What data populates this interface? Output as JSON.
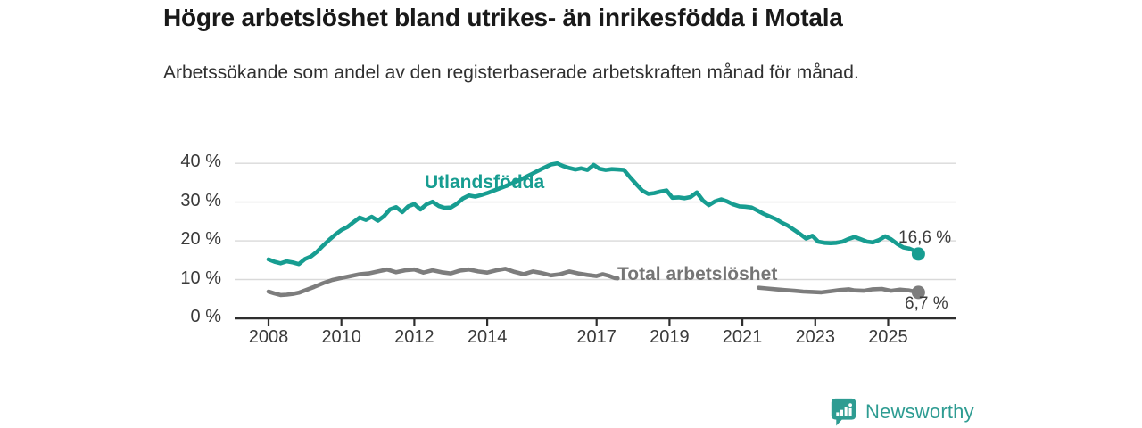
{
  "header": {
    "title": "Högre arbetslöshet bland utrikes- än inrikesfödda i Motala",
    "subtitle": "Arbetssökande som andel av den registerbaserade arbetskraften månad för månad."
  },
  "chart_data": {
    "type": "line",
    "title": "Högre arbetslöshet bland utrikes- än inrikesfödda i Motala",
    "subtitle": "Arbetssökande som andel av den registerbaserade arbetskraften månad för månad.",
    "x_unit": "year, monthly observations",
    "y_unit": "percent of registered labour force",
    "xlim": [
      2007.1,
      2026.9
    ],
    "ylim": [
      0,
      40
    ],
    "grid": "horizontal",
    "legend_position": "inline-labels",
    "grid_color": "#d9d9d9",
    "axis_color": "#2e2e2e",
    "yticks": [
      {
        "value": 0,
        "label": "0 %"
      },
      {
        "value": 10,
        "label": "10 %"
      },
      {
        "value": 20,
        "label": "20 %"
      },
      {
        "value": 30,
        "label": "30 %"
      },
      {
        "value": 40,
        "label": "40 %"
      }
    ],
    "xticks": [
      {
        "value": 2008,
        "label": "2008"
      },
      {
        "value": 2010,
        "label": "2010"
      },
      {
        "value": 2012,
        "label": "2012"
      },
      {
        "value": 2014,
        "label": "2014"
      },
      {
        "value": 2017,
        "label": "2017"
      },
      {
        "value": 2019,
        "label": "2019"
      },
      {
        "value": 2021,
        "label": "2021"
      },
      {
        "value": 2023,
        "label": "2023"
      },
      {
        "value": 2025,
        "label": "2025"
      }
    ],
    "series": [
      {
        "name": "Utlandsfödda",
        "color": "#179d91",
        "end_label": "16,6 %",
        "end_value": 16.6,
        "points": [
          [
            2008.0,
            15.2
          ],
          [
            2008.17,
            14.6
          ],
          [
            2008.33,
            14.2
          ],
          [
            2008.5,
            14.7
          ],
          [
            2008.67,
            14.4
          ],
          [
            2008.83,
            14.0
          ],
          [
            2009.0,
            15.3
          ],
          [
            2009.17,
            16.0
          ],
          [
            2009.33,
            17.2
          ],
          [
            2009.5,
            18.8
          ],
          [
            2009.67,
            20.3
          ],
          [
            2009.83,
            21.6
          ],
          [
            2010.0,
            22.8
          ],
          [
            2010.17,
            23.6
          ],
          [
            2010.33,
            24.8
          ],
          [
            2010.5,
            26.0
          ],
          [
            2010.67,
            25.4
          ],
          [
            2010.83,
            26.2
          ],
          [
            2011.0,
            25.2
          ],
          [
            2011.17,
            26.4
          ],
          [
            2011.33,
            28.1
          ],
          [
            2011.5,
            28.7
          ],
          [
            2011.67,
            27.4
          ],
          [
            2011.83,
            28.9
          ],
          [
            2012.0,
            29.5
          ],
          [
            2012.17,
            28.1
          ],
          [
            2012.33,
            29.4
          ],
          [
            2012.5,
            30.1
          ],
          [
            2012.67,
            29.0
          ],
          [
            2012.83,
            28.5
          ],
          [
            2013.0,
            28.6
          ],
          [
            2013.17,
            29.6
          ],
          [
            2013.33,
            30.9
          ],
          [
            2013.5,
            31.7
          ],
          [
            2013.67,
            31.4
          ],
          [
            2013.83,
            31.8
          ],
          [
            2014.0,
            32.3
          ],
          [
            2014.25,
            33.2
          ],
          [
            2014.5,
            34.1
          ],
          [
            2014.75,
            35.1
          ],
          [
            2015.0,
            36.2
          ],
          [
            2015.25,
            37.4
          ],
          [
            2015.5,
            38.6
          ],
          [
            2015.75,
            39.7
          ],
          [
            2015.92,
            40.0
          ],
          [
            2016.08,
            39.3
          ],
          [
            2016.25,
            38.8
          ],
          [
            2016.42,
            38.4
          ],
          [
            2016.58,
            38.7
          ],
          [
            2016.75,
            38.3
          ],
          [
            2016.92,
            39.6
          ],
          [
            2017.08,
            38.6
          ],
          [
            2017.25,
            38.3
          ],
          [
            2017.42,
            38.5
          ],
          [
            2017.58,
            38.4
          ],
          [
            2017.75,
            38.3
          ],
          [
            2017.92,
            36.4
          ],
          [
            2018.08,
            34.7
          ],
          [
            2018.25,
            33.0
          ],
          [
            2018.42,
            32.1
          ],
          [
            2018.58,
            32.3
          ],
          [
            2018.75,
            32.7
          ],
          [
            2018.92,
            33.0
          ],
          [
            2019.08,
            31.1
          ],
          [
            2019.25,
            31.2
          ],
          [
            2019.42,
            31.0
          ],
          [
            2019.58,
            31.3
          ],
          [
            2019.75,
            32.5
          ],
          [
            2019.92,
            30.4
          ],
          [
            2020.08,
            29.2
          ],
          [
            2020.25,
            30.2
          ],
          [
            2020.42,
            30.7
          ],
          [
            2020.58,
            30.2
          ],
          [
            2020.75,
            29.4
          ],
          [
            2020.92,
            28.9
          ],
          [
            2021.08,
            28.8
          ],
          [
            2021.25,
            28.6
          ],
          [
            2021.42,
            27.8
          ],
          [
            2021.58,
            27.0
          ],
          [
            2021.75,
            26.3
          ],
          [
            2021.92,
            25.6
          ],
          [
            2022.08,
            24.7
          ],
          [
            2022.25,
            23.9
          ],
          [
            2022.42,
            22.8
          ],
          [
            2022.58,
            21.8
          ],
          [
            2022.75,
            20.6
          ],
          [
            2022.92,
            21.3
          ],
          [
            2023.08,
            19.8
          ],
          [
            2023.25,
            19.5
          ],
          [
            2023.42,
            19.4
          ],
          [
            2023.58,
            19.5
          ],
          [
            2023.75,
            19.8
          ],
          [
            2023.92,
            20.5
          ],
          [
            2024.08,
            21.0
          ],
          [
            2024.25,
            20.4
          ],
          [
            2024.42,
            19.8
          ],
          [
            2024.58,
            19.6
          ],
          [
            2024.75,
            20.2
          ],
          [
            2024.92,
            21.2
          ],
          [
            2025.08,
            20.4
          ],
          [
            2025.25,
            19.2
          ],
          [
            2025.42,
            18.3
          ],
          [
            2025.58,
            18.0
          ],
          [
            2025.75,
            17.3
          ],
          [
            2025.83,
            16.6
          ]
        ]
      },
      {
        "name": "Total arbetslöshet",
        "color": "#7d7d7d",
        "end_label": "6,7 %",
        "end_value": 6.7,
        "note": "line hidden behind its own label between ~2017.6 and ~2021.45",
        "segments": [
          [
            [
              2008.0,
              6.9
            ],
            [
              2008.17,
              6.4
            ],
            [
              2008.33,
              6.0
            ],
            [
              2008.5,
              6.1
            ],
            [
              2008.67,
              6.3
            ],
            [
              2008.83,
              6.6
            ],
            [
              2009.0,
              7.2
            ],
            [
              2009.25,
              8.1
            ],
            [
              2009.5,
              9.1
            ],
            [
              2009.75,
              9.9
            ],
            [
              2010.0,
              10.4
            ],
            [
              2010.25,
              10.9
            ],
            [
              2010.5,
              11.4
            ],
            [
              2010.75,
              11.6
            ],
            [
              2011.0,
              12.1
            ],
            [
              2011.25,
              12.6
            ],
            [
              2011.5,
              11.9
            ],
            [
              2011.75,
              12.4
            ],
            [
              2012.0,
              12.6
            ],
            [
              2012.25,
              11.8
            ],
            [
              2012.5,
              12.4
            ],
            [
              2012.75,
              11.9
            ],
            [
              2013.0,
              11.6
            ],
            [
              2013.25,
              12.3
            ],
            [
              2013.5,
              12.6
            ],
            [
              2013.75,
              12.1
            ],
            [
              2014.0,
              11.8
            ],
            [
              2014.25,
              12.4
            ],
            [
              2014.5,
              12.8
            ],
            [
              2014.75,
              12.0
            ],
            [
              2015.0,
              11.4
            ],
            [
              2015.25,
              12.1
            ],
            [
              2015.5,
              11.7
            ],
            [
              2015.75,
              11.1
            ],
            [
              2016.0,
              11.4
            ],
            [
              2016.25,
              12.1
            ],
            [
              2016.5,
              11.6
            ],
            [
              2016.75,
              11.2
            ],
            [
              2017.0,
              10.9
            ],
            [
              2017.17,
              11.4
            ],
            [
              2017.33,
              11.0
            ],
            [
              2017.5,
              10.4
            ],
            [
              2017.58,
              10.3
            ]
          ],
          [
            [
              2021.45,
              7.9
            ],
            [
              2021.67,
              7.7
            ],
            [
              2021.92,
              7.5
            ],
            [
              2022.17,
              7.3
            ],
            [
              2022.42,
              7.1
            ],
            [
              2022.67,
              6.9
            ],
            [
              2022.92,
              6.8
            ],
            [
              2023.17,
              6.7
            ],
            [
              2023.42,
              7.0
            ],
            [
              2023.67,
              7.3
            ],
            [
              2023.92,
              7.5
            ],
            [
              2024.08,
              7.2
            ],
            [
              2024.33,
              7.1
            ],
            [
              2024.58,
              7.5
            ],
            [
              2024.83,
              7.6
            ],
            [
              2025.08,
              7.1
            ],
            [
              2025.33,
              7.4
            ],
            [
              2025.58,
              7.2
            ],
            [
              2025.83,
              6.7
            ]
          ]
        ]
      }
    ]
  },
  "footer": {
    "brand": "Newsworthy",
    "logo_icon": "bar-chart-speech-bubble-icon",
    "logo_color": "#2e9c92"
  }
}
